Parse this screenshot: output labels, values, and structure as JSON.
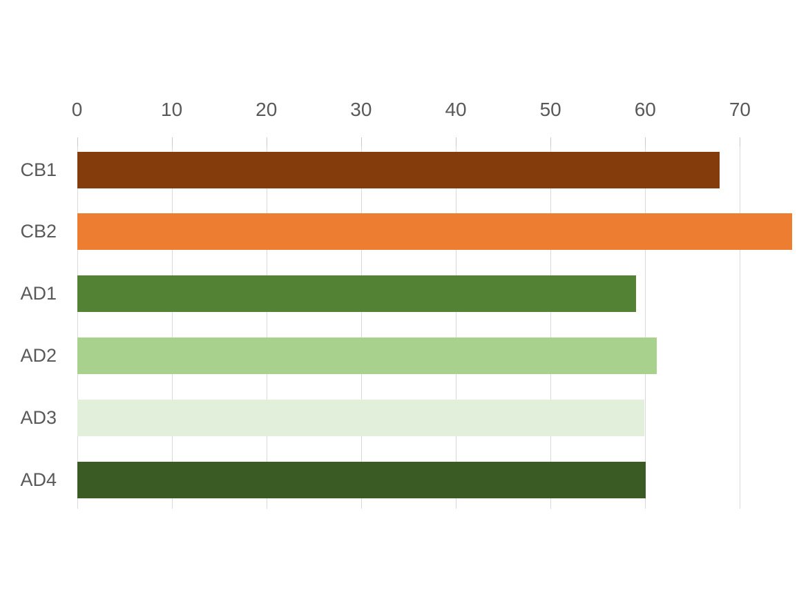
{
  "chart_data": {
    "type": "bar",
    "orientation": "horizontal",
    "title": "",
    "xlabel": "",
    "ylabel": "",
    "categories": [
      "CB1",
      "CB2",
      "AD1",
      "AD2",
      "AD3",
      "AD4"
    ],
    "values": [
      67.8,
      75.5,
      59.0,
      61.2,
      59.9,
      60.0
    ],
    "bar_colors": [
      "#843C0C",
      "#ED7D31",
      "#548235",
      "#A9D18E",
      "#E2EFDA",
      "#3A5B23"
    ],
    "x_ticks": [
      0,
      10,
      20,
      30,
      40,
      50,
      60,
      70
    ],
    "xlim": [
      0,
      77.2
    ],
    "grid": true,
    "legend": "none",
    "gridline_color": "#D9D9D9",
    "axis_text_color": "#595959",
    "background_color": "#FFFFFF"
  }
}
